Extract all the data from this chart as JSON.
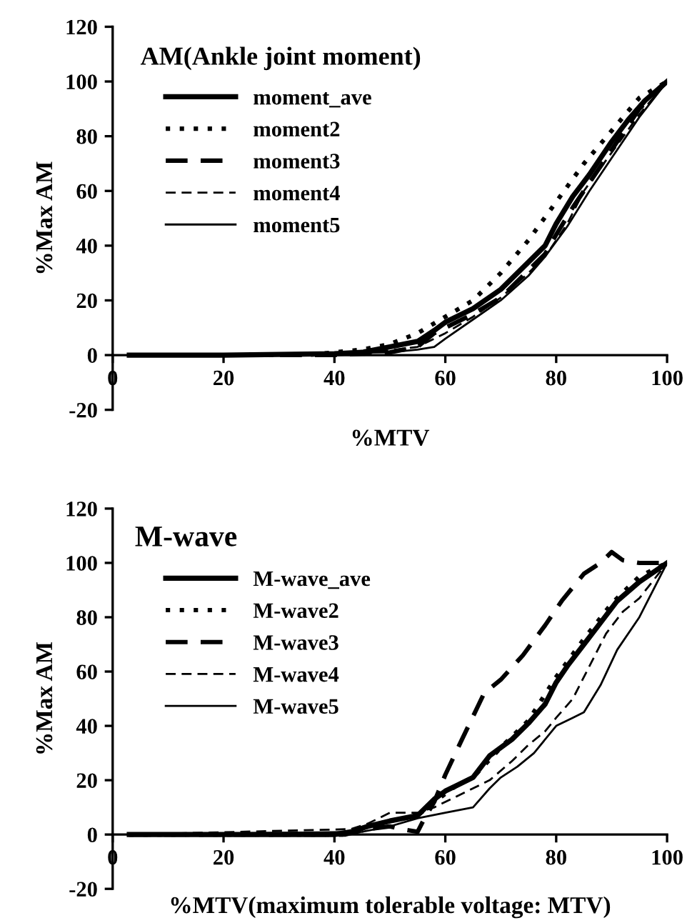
{
  "chart_data": [
    {
      "type": "line",
      "title": "AM(Ankle joint moment)",
      "xlabel": "%MTV",
      "ylabel": "%Max AM",
      "xlim": [
        0,
        100
      ],
      "ylim": [
        -20,
        120
      ],
      "xticks": [
        0,
        20,
        40,
        60,
        80,
        100
      ],
      "yticks": [
        -20,
        0,
        20,
        40,
        60,
        80,
        100,
        120
      ],
      "grid": false,
      "legend": "top left",
      "marker": "none",
      "series": [
        {
          "name": "moment_ave",
          "color": "#000000",
          "line_style": "solid",
          "x": [
            3,
            20,
            40,
            45,
            50,
            55,
            58,
            60,
            65,
            70,
            75,
            78,
            80,
            83,
            86,
            90,
            93,
            96,
            100
          ],
          "values": [
            0,
            0,
            0.5,
            1,
            3,
            5,
            9,
            12,
            17,
            24,
            34,
            40,
            48,
            58,
            66,
            78,
            86,
            93,
            100
          ]
        },
        {
          "name": "moment2",
          "color": "#000000",
          "line_style": "dotted",
          "x": [
            3,
            35,
            40,
            45,
            50,
            55,
            60,
            65,
            70,
            75,
            80,
            85,
            90,
            95,
            100
          ],
          "values": [
            0,
            0,
            1,
            2,
            4,
            8,
            14,
            20,
            30,
            42,
            56,
            70,
            82,
            94,
            100
          ]
        },
        {
          "name": "moment3",
          "color": "#000000",
          "line_style": "dashed",
          "x": [
            5,
            40,
            50,
            55,
            58,
            60,
            65,
            70,
            75,
            78,
            80,
            83,
            86,
            90,
            95,
            100
          ],
          "values": [
            0,
            0,
            1,
            3,
            8,
            10,
            15,
            21,
            31,
            37,
            44,
            54,
            63,
            75,
            90,
            100
          ]
        },
        {
          "name": "moment4",
          "color": "#000000",
          "line_style": "dashed",
          "x": [
            5,
            45,
            55,
            60,
            65,
            70,
            75,
            78,
            82,
            85,
            90,
            95,
            100
          ],
          "values": [
            0,
            0.5,
            3,
            8,
            14,
            21,
            30,
            36,
            48,
            60,
            74,
            88,
            100
          ]
        },
        {
          "name": "moment5",
          "color": "#000000",
          "line_style": "solid",
          "x": [
            5,
            50,
            55,
            58,
            60,
            65,
            70,
            75,
            78,
            82,
            86,
            90,
            95,
            100
          ],
          "values": [
            0,
            1,
            2,
            3,
            6,
            13,
            20,
            29,
            36,
            47,
            60,
            72,
            87,
            100
          ]
        }
      ]
    },
    {
      "type": "line",
      "title": "M-wave",
      "xlabel": "%MTV(maximum tolerable voltage: MTV)",
      "ylabel": "%Max AM",
      "xlim": [
        0,
        100
      ],
      "ylim": [
        -20,
        120
      ],
      "xticks": [
        0,
        20,
        40,
        60,
        80,
        100
      ],
      "yticks": [
        -20,
        0,
        20,
        40,
        60,
        80,
        100,
        120
      ],
      "grid": false,
      "legend": "top left",
      "marker": "none",
      "series": [
        {
          "name": "M-wave_ave",
          "color": "#000000",
          "line_style": "solid",
          "x": [
            3,
            40,
            43,
            46,
            50,
            55,
            58,
            60,
            62,
            65,
            68,
            72,
            75,
            78,
            80,
            82,
            85,
            88,
            91,
            95,
            100
          ],
          "values": [
            0,
            0,
            1,
            3,
            5,
            7,
            13,
            16,
            18,
            21,
            29,
            35,
            41,
            48,
            56,
            62,
            70,
            78,
            86,
            93,
            100
          ]
        },
        {
          "name": "M-wave2",
          "color": "#000000",
          "line_style": "dotted",
          "x": [
            3,
            42,
            46,
            50,
            55,
            58,
            62,
            65,
            70,
            75,
            80,
            85,
            90,
            95,
            100
          ],
          "values": [
            0,
            0,
            3,
            5,
            7,
            12,
            18,
            21,
            32,
            42,
            58,
            72,
            85,
            95,
            100
          ]
        },
        {
          "name": "M-wave3",
          "color": "#000000",
          "line_style": "dashed",
          "x": [
            3,
            42,
            44,
            46,
            50,
            52,
            55,
            56,
            58,
            60,
            63,
            67,
            70,
            74,
            78,
            81,
            85,
            88,
            90,
            92,
            95,
            100
          ],
          "values": [
            0,
            0,
            1,
            2,
            3,
            2,
            1,
            5,
            12,
            22,
            35,
            52,
            57,
            66,
            77,
            86,
            96,
            100,
            104,
            101,
            100,
            100
          ]
        },
        {
          "name": "M-wave4",
          "color": "#000000",
          "line_style": "dashed",
          "x": [
            3,
            43,
            46,
            50,
            55,
            58,
            62,
            65,
            68,
            72,
            75,
            78,
            80,
            83,
            86,
            89,
            92,
            95,
            100
          ],
          "values": [
            0,
            2,
            4,
            8,
            8,
            10,
            14,
            17,
            20,
            27,
            33,
            38,
            43,
            50,
            62,
            74,
            82,
            87,
            100
          ]
        },
        {
          "name": "M-wave5",
          "color": "#000000",
          "line_style": "solid",
          "x": [
            3,
            45,
            50,
            55,
            60,
            65,
            68,
            70,
            73,
            76,
            80,
            83,
            85,
            88,
            91,
            95,
            100
          ],
          "values": [
            0,
            1,
            3,
            6,
            8,
            10,
            17,
            21,
            25,
            30,
            40,
            43,
            45,
            55,
            68,
            80,
            100
          ]
        }
      ]
    }
  ]
}
